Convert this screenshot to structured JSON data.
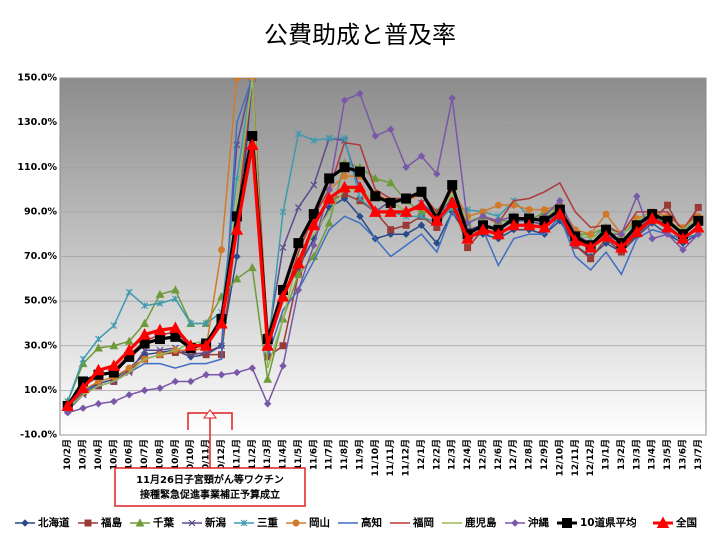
{
  "chart_data": {
    "type": "line",
    "title": "公費助成と普及率",
    "annotation": [
      "11月26日子宮頸がん等ワクチン",
      "接種緊急促進事業補正予算成立"
    ],
    "categories": [
      "10/2月",
      "10/3月",
      "10/4月",
      "10/5月",
      "10/6月",
      "10/7月",
      "10/8月",
      "10/9月",
      "10/10月",
      "10/11月",
      "10/12月",
      "11/1月",
      "11/2月",
      "11/3月",
      "11/4月",
      "11/5月",
      "11/6月",
      "11/7月",
      "11/8月",
      "11/9月",
      "11/10月",
      "11/11月",
      "11/12月",
      "12/1月",
      "12/2月",
      "12/3月",
      "12/4月",
      "12/5月",
      "12/6月",
      "12/7月",
      "12/8月",
      "12/9月",
      "12/10月",
      "12/11月",
      "12/12月",
      "13/1月",
      "13/2月",
      "13/3月",
      "13/4月",
      "13/5月",
      "13/6月",
      "13/7月"
    ],
    "ylim": [
      -10,
      150
    ],
    "yticks": [
      {
        "value": -10,
        "label": "-10.0%"
      },
      {
        "value": 10,
        "label": "10.0%"
      },
      {
        "value": 30,
        "label": "30.0%"
      },
      {
        "value": 50,
        "label": "50.0%"
      },
      {
        "value": 70,
        "label": "70.0%"
      },
      {
        "value": 90,
        "label": "90.0%"
      },
      {
        "value": 110,
        "label": "110.0%"
      },
      {
        "value": 130,
        "label": "130.0%"
      },
      {
        "value": 150,
        "label": "150.0%"
      }
    ],
    "grid": true,
    "legend": "bottom",
    "series": [
      {
        "name": "北海道",
        "color": "#2a4a8a",
        "marker": "diamond",
        "values": [
          2,
          10,
          13,
          15,
          20,
          26,
          27,
          28,
          25,
          26,
          30,
          70,
          150,
          33,
          52,
          65,
          78,
          92,
          96,
          88,
          78,
          80,
          80,
          84,
          76,
          90,
          79,
          80,
          78,
          82,
          82,
          80,
          86,
          75,
          70,
          76,
          72,
          79,
          85,
          80,
          76,
          80
        ]
      },
      {
        "name": "福島",
        "color": "#9a3a36",
        "marker": "square",
        "values": [
          2,
          9,
          12,
          14,
          19,
          24,
          26,
          27,
          27,
          26,
          26,
          84,
          150,
          25,
          30,
          62,
          85,
          95,
          98,
          95,
          90,
          82,
          84,
          88,
          83,
          95,
          74,
          82,
          80,
          84,
          84,
          83,
          88,
          75,
          69,
          78,
          72,
          80,
          86,
          93,
          80,
          92
        ]
      },
      {
        "name": "千葉",
        "color": "#6f9a3a",
        "marker": "triangle",
        "values": [
          5,
          22,
          29,
          30,
          32,
          40,
          53,
          55,
          40,
          40,
          52,
          60,
          65,
          15,
          42,
          62,
          70,
          85,
          112,
          110,
          105,
          103,
          95,
          90,
          90,
          92,
          85,
          88,
          86,
          86,
          86,
          90,
          92,
          80,
          80,
          83,
          80,
          85,
          88,
          85,
          80,
          86
        ]
      },
      {
        "name": "新潟",
        "color": "#5e4a8c",
        "marker": "x",
        "values": [
          1,
          8,
          12,
          14,
          18,
          28,
          28,
          29,
          26,
          27,
          30,
          120,
          150,
          32,
          74,
          92,
          102,
          123,
          122,
          100,
          90,
          95,
          90,
          94,
          88,
          96,
          82,
          84,
          82,
          86,
          86,
          84,
          90,
          78,
          76,
          80,
          76,
          82,
          88,
          84,
          78,
          84
        ]
      },
      {
        "name": "三重",
        "color": "#3d9ab0",
        "marker": "star",
        "values": [
          5,
          24,
          33,
          39,
          54,
          48,
          49,
          51,
          40,
          40,
          45,
          105,
          150,
          28,
          90,
          125,
          122,
          123,
          123,
          96,
          90,
          90,
          88,
          88,
          85,
          92,
          91,
          90,
          88,
          95,
          88,
          85,
          92,
          80,
          78,
          83,
          80,
          85,
          90,
          86,
          82,
          86
        ]
      },
      {
        "name": "岡山",
        "color": "#d07a2a",
        "marker": "circle",
        "values": [
          2,
          10,
          14,
          16,
          20,
          24,
          26,
          28,
          28,
          29,
          73,
          150,
          150,
          35,
          56,
          75,
          88,
          100,
          106,
          106,
          98,
          95,
          95,
          98,
          88,
          100,
          88,
          90,
          93,
          93,
          91,
          91,
          93,
          82,
          80,
          89,
          80,
          87,
          90,
          88,
          83,
          88
        ]
      },
      {
        "name": "高知",
        "color": "#3f6fc0",
        "marker": "none",
        "values": [
          2,
          10,
          12,
          14,
          18,
          22,
          22,
          20,
          22,
          22,
          24,
          130,
          150,
          25,
          46,
          55,
          68,
          82,
          88,
          85,
          78,
          70,
          75,
          80,
          72,
          90,
          82,
          82,
          66,
          78,
          80,
          80,
          88,
          70,
          64,
          72,
          62,
          78,
          82,
          80,
          78,
          80
        ]
      },
      {
        "name": "福岡",
        "color": "#b0383a",
        "marker": "none",
        "values": [
          3,
          12,
          16,
          19,
          26,
          32,
          35,
          36,
          30,
          31,
          40,
          85,
          150,
          30,
          50,
          72,
          88,
          100,
          121,
          120,
          100,
          96,
          96,
          98,
          90,
          100,
          85,
          88,
          85,
          95,
          96,
          99,
          103,
          90,
          83,
          84,
          80,
          90,
          90,
          90,
          82,
          92
        ]
      },
      {
        "name": "鹿児島",
        "color": "#98b95a",
        "marker": "none",
        "values": [
          2,
          8,
          12,
          14,
          18,
          24,
          26,
          28,
          31,
          32,
          40,
          95,
          150,
          20,
          42,
          70,
          80,
          90,
          100,
          100,
          95,
          95,
          90,
          92,
          88,
          98,
          86,
          88,
          86,
          88,
          86,
          88,
          92,
          80,
          78,
          82,
          80,
          86,
          90,
          86,
          82,
          88
        ]
      },
      {
        "name": "沖縄",
        "color": "#7a58a8",
        "marker": "diamond",
        "values": [
          0,
          2,
          4,
          5,
          8,
          10,
          11,
          14,
          14,
          17,
          17,
          18,
          20,
          4,
          21,
          55,
          75,
          100,
          140,
          143,
          124,
          127,
          110,
          115,
          107,
          141,
          85,
          88,
          86,
          88,
          86,
          88,
          95,
          80,
          76,
          80,
          80,
          97,
          78,
          80,
          73,
          80
        ]
      },
      {
        "name": "10道県平均",
        "color": "#000000",
        "marker": "bigsquare",
        "values": [
          3,
          14,
          17,
          18,
          25,
          31,
          33,
          34,
          29,
          31,
          42,
          88,
          124,
          33,
          55,
          76,
          89,
          105,
          110,
          108,
          97,
          94,
          96,
          99,
          87,
          102,
          80,
          84,
          82,
          87,
          87,
          86,
          91,
          79,
          75,
          82,
          76,
          84,
          89,
          86,
          80,
          86
        ]
      },
      {
        "name": "全国",
        "color": "#ff0000",
        "marker": "bigtriangle",
        "values": [
          3,
          11,
          19,
          21,
          28,
          35,
          37,
          38,
          30,
          30,
          40,
          82,
          120,
          30,
          52,
          67,
          84,
          96,
          101,
          101,
          90,
          90,
          90,
          93,
          86,
          94,
          78,
          82,
          80,
          84,
          84,
          83,
          89,
          77,
          74,
          79,
          74,
          81,
          87,
          83,
          78,
          83
        ]
      }
    ]
  }
}
